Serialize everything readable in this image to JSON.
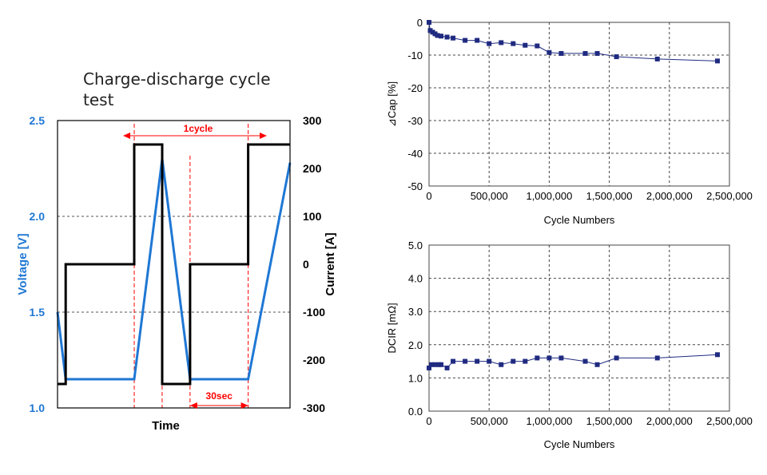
{
  "title": "Charge-discharge cycle test",
  "colors": {
    "voltage": "#1f77d4",
    "current": "#000000",
    "annotation": "#ff0000",
    "series": "#1f2a80"
  },
  "chart_data": [
    {
      "type": "line",
      "title": "Charge-discharge cycle test",
      "xlabel": "Time",
      "ylabel_left": "Voltage [V]",
      "ylabel_right": "Current [A]",
      "ylim_left": [
        1.0,
        2.5
      ],
      "ylim_right": [
        -300,
        300
      ],
      "yticks_left": [
        "1.0",
        "1.5",
        "2.0",
        "2.5"
      ],
      "yticks_right": [
        "-300",
        "-200",
        "-100",
        "0",
        "100",
        "200",
        "300"
      ],
      "grid": "horizontal dashed",
      "annotations": [
        {
          "text": "1cycle"
        },
        {
          "text": "30sec"
        }
      ],
      "series": [
        {
          "name": "Voltage [V]",
          "axis": "left",
          "x": [
            0,
            3.5,
            33,
            45,
            57,
            82,
            100
          ],
          "y": [
            1.5,
            1.15,
            1.15,
            2.3,
            1.15,
            1.15,
            2.28
          ]
        },
        {
          "name": "Current [A]",
          "axis": "right",
          "x": [
            0,
            3.5,
            3.5,
            33,
            33,
            45,
            45,
            57,
            57,
            82,
            82,
            100
          ],
          "y": [
            -250,
            -250,
            0,
            0,
            250,
            250,
            -250,
            -250,
            0,
            0,
            250,
            250
          ]
        }
      ]
    },
    {
      "type": "line",
      "xlabel": "Cycle Numbers",
      "ylabel": "⊿Cap [%]",
      "xlim": [
        0,
        2500000
      ],
      "ylim": [
        -50,
        0
      ],
      "xticks": [
        "0",
        "500,000",
        "1,000,000",
        "1,500,000",
        "2,000,000",
        "2,500,000"
      ],
      "yticks": [
        "0",
        "-10",
        "-20",
        "-30",
        "-40",
        "-50"
      ],
      "grid": "dashed",
      "series": [
        {
          "x": [
            0,
            10000,
            30000,
            50000,
            70000,
            100000,
            150000,
            200000,
            300000,
            400000,
            500000,
            600000,
            700000,
            800000,
            900000,
            1000000,
            1100000,
            1300000,
            1400000,
            1560000,
            1900000,
            2400000
          ],
          "y": [
            0,
            -2.5,
            -3,
            -3.5,
            -4,
            -4.2,
            -4.5,
            -4.8,
            -5.5,
            -5.5,
            -6.5,
            -6.2,
            -6.5,
            -7,
            -7.2,
            -9.2,
            -9.5,
            -9.5,
            -9.5,
            -10.5,
            -11.2,
            -11.8
          ]
        }
      ]
    },
    {
      "type": "line",
      "xlabel": "Cycle Numbers",
      "ylabel": "DCIR [mΩ]",
      "xlim": [
        0,
        2500000
      ],
      "ylim": [
        0,
        5
      ],
      "xticks": [
        "0",
        "500,000",
        "1,000,000",
        "1,500,000",
        "2,000,000",
        "2,500,000"
      ],
      "yticks": [
        "0.0",
        "1.0",
        "2.0",
        "3.0",
        "4.0",
        "5.0"
      ],
      "grid": "dashed",
      "series": [
        {
          "x": [
            0,
            20000,
            50000,
            80000,
            100000,
            150000,
            200000,
            300000,
            400000,
            500000,
            600000,
            700000,
            800000,
            900000,
            1000000,
            1100000,
            1300000,
            1400000,
            1560000,
            1900000,
            2400000
          ],
          "y": [
            1.3,
            1.4,
            1.4,
            1.4,
            1.4,
            1.3,
            1.5,
            1.5,
            1.5,
            1.5,
            1.4,
            1.5,
            1.5,
            1.6,
            1.6,
            1.6,
            1.5,
            1.4,
            1.6,
            1.6,
            1.7
          ]
        }
      ]
    }
  ]
}
